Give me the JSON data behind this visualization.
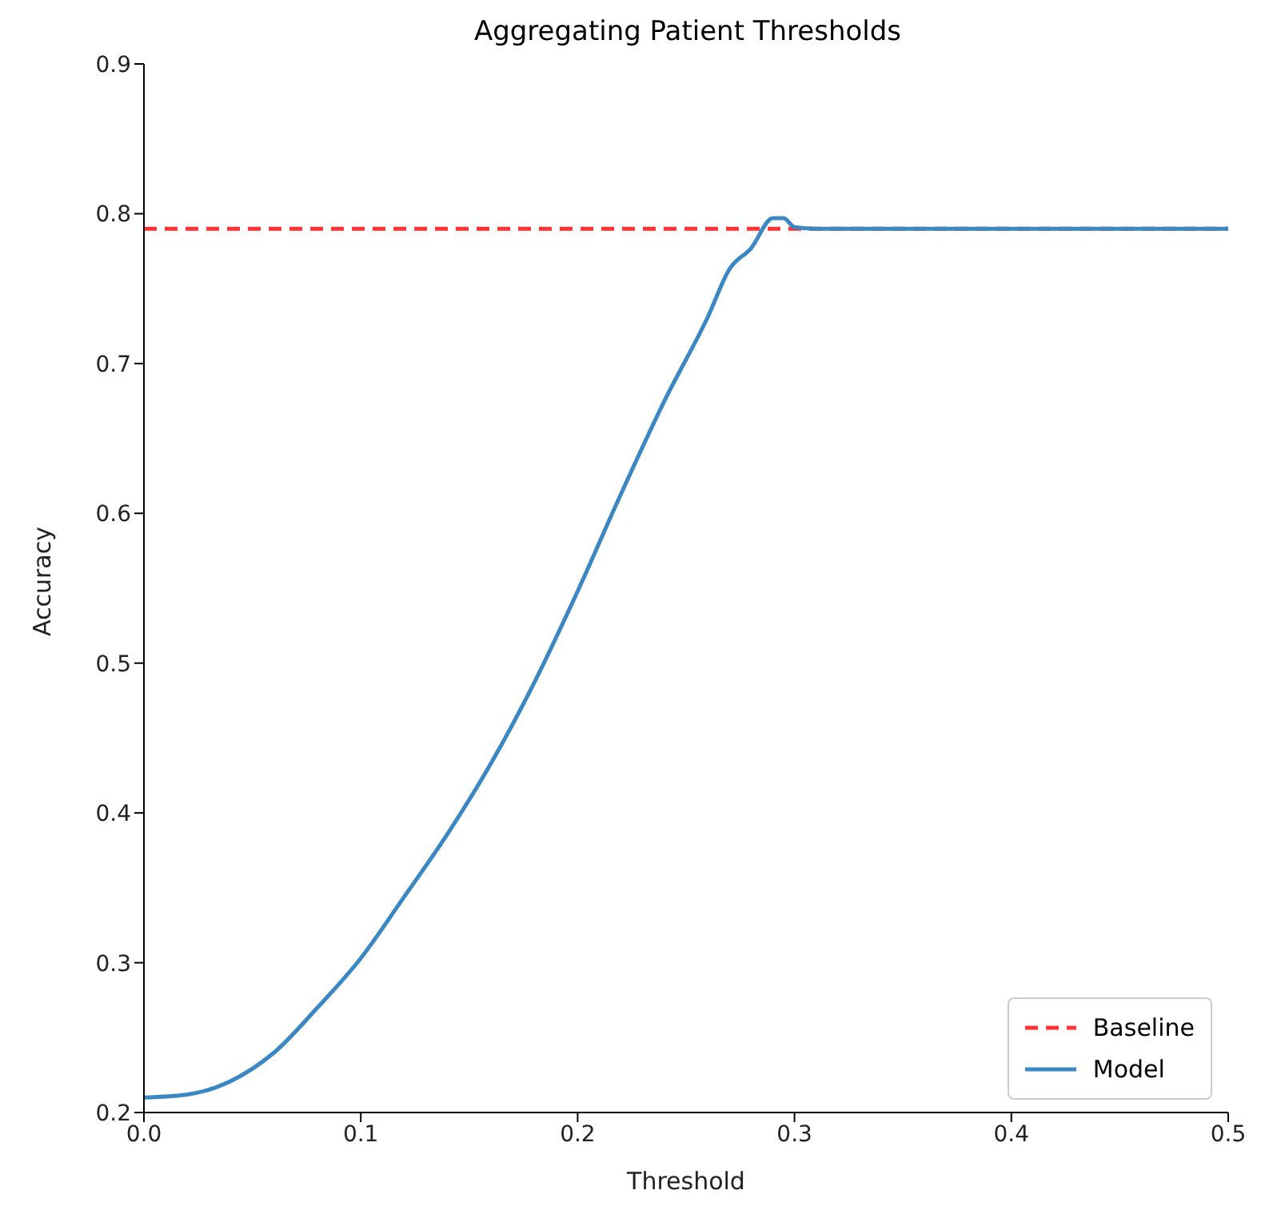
{
  "chart_data": {
    "type": "line",
    "title": "Aggregating Patient Thresholds",
    "xlabel": "Threshold",
    "ylabel": "Accuracy",
    "xlim": [
      0,
      0.5
    ],
    "xticks": [
      {
        "value": 0,
        "label": "0.0"
      },
      0.1,
      0.2,
      0.3,
      0.4,
      0.5
    ],
    "ylim": [
      0.2,
      0.9
    ],
    "yticks": [
      0.2,
      0.3,
      0.4,
      0.5,
      0.6,
      0.7,
      0.8,
      0.9
    ],
    "grid": false,
    "legend": "bottom right",
    "ref_lines": [
      {
        "axis": "y",
        "value": 0.79,
        "label": "Baseline",
        "color": "#ff3333",
        "line_style": "dashed"
      }
    ],
    "series": [
      {
        "name": "Model",
        "color": "#3a87c4",
        "x": [
          0,
          0.02,
          0.04,
          0.06,
          0.08,
          0.1,
          0.12,
          0.14,
          0.16,
          0.18,
          0.2,
          0.22,
          0.24,
          0.26,
          0.27,
          0.28,
          0.29,
          0.295,
          0.3,
          0.31,
          0.35,
          0.4,
          0.45,
          0.5
        ],
        "values": [
          0.21,
          0.212,
          0.221,
          0.24,
          0.27,
          0.303,
          0.344,
          0.386,
          0.433,
          0.487,
          0.548,
          0.613,
          0.675,
          0.731,
          0.763,
          0.777,
          0.797,
          0.797,
          0.791,
          0.79,
          0.79,
          0.79,
          0.79,
          0.79
        ]
      }
    ]
  }
}
